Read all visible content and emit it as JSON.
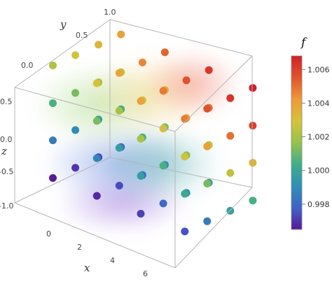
{
  "chart_data": {
    "type": "scatter",
    "mode": "3d",
    "title": "",
    "axes": {
      "x": {
        "label": "x",
        "range": [
          -0.5,
          6.8
        ],
        "ticks": [
          "0",
          "2",
          "4",
          "6"
        ]
      },
      "y": {
        "label": "y",
        "range": [
          -0.4,
          1.0
        ],
        "ticks": [
          "0.0",
          "0.5",
          "1.0"
        ]
      },
      "z": {
        "label": "z",
        "range": [
          -1.3,
          0.75
        ],
        "ticks": [
          "0.5",
          "0.0",
          "-0.5",
          "-1.0"
        ]
      }
    },
    "colorbar": {
      "label": "f",
      "range": [
        0.9965,
        1.0068
      ],
      "ticks": [
        "1.006",
        "1.004",
        "1.002",
        "1.000",
        "0.998"
      ],
      "colormap": [
        "#5a189a",
        "#3f63c9",
        "#2f8fb6",
        "#3fae8a",
        "#96c24a",
        "#d6c23a",
        "#ee9a38",
        "#e2542c",
        "#d21f26"
      ]
    },
    "box": true,
    "grid": false,
    "points_note": "4 x 4 x 4 lattice of sample points, f increases with z and y",
    "points": [
      {
        "x": 0.0,
        "y": 0.0,
        "z": -1.0,
        "f": 0.9965
      },
      {
        "x": 2.0,
        "y": 0.0,
        "z": -1.0,
        "f": 0.9968
      },
      {
        "x": 4.0,
        "y": 0.0,
        "z": -1.0,
        "f": 0.9972
      },
      {
        "x": 6.0,
        "y": 0.0,
        "z": -1.0,
        "f": 0.9975
      },
      {
        "x": 0.0,
        "y": 0.33,
        "z": -1.0,
        "f": 0.997
      },
      {
        "x": 2.0,
        "y": 0.33,
        "z": -1.0,
        "f": 0.9974
      },
      {
        "x": 4.0,
        "y": 0.33,
        "z": -1.0,
        "f": 0.998
      },
      {
        "x": 6.0,
        "y": 0.33,
        "z": -1.0,
        "f": 0.9985
      },
      {
        "x": 0.0,
        "y": 0.67,
        "z": -1.0,
        "f": 0.9972
      },
      {
        "x": 2.0,
        "y": 0.67,
        "z": -1.0,
        "f": 0.998
      },
      {
        "x": 4.0,
        "y": 0.67,
        "z": -1.0,
        "f": 0.999
      },
      {
        "x": 6.0,
        "y": 0.67,
        "z": -1.0,
        "f": 0.9998
      },
      {
        "x": 0.0,
        "y": 1.0,
        "z": -1.0,
        "f": 0.9978
      },
      {
        "x": 2.0,
        "y": 1.0,
        "z": -1.0,
        "f": 0.9988
      },
      {
        "x": 4.0,
        "y": 1.0,
        "z": -1.0,
        "f": 0.9998
      },
      {
        "x": 6.0,
        "y": 1.0,
        "z": -1.0,
        "f": 1.0005
      },
      {
        "x": 0.0,
        "y": 0.0,
        "z": -0.33,
        "f": 0.9985
      },
      {
        "x": 2.0,
        "y": 0.0,
        "z": -0.33,
        "f": 0.9988
      },
      {
        "x": 4.0,
        "y": 0.0,
        "z": -0.33,
        "f": 0.9996
      },
      {
        "x": 6.0,
        "y": 0.0,
        "z": -0.33,
        "f": 1.0002
      },
      {
        "x": 0.0,
        "y": 0.33,
        "z": -0.33,
        "f": 0.999
      },
      {
        "x": 2.0,
        "y": 0.33,
        "z": -0.33,
        "f": 0.9996
      },
      {
        "x": 4.0,
        "y": 0.33,
        "z": -0.33,
        "f": 1.0005
      },
      {
        "x": 6.0,
        "y": 0.33,
        "z": -0.33,
        "f": 1.0012
      },
      {
        "x": 0.0,
        "y": 0.67,
        "z": -0.33,
        "f": 0.9996
      },
      {
        "x": 2.0,
        "y": 0.67,
        "z": -0.33,
        "f": 1.0005
      },
      {
        "x": 4.0,
        "y": 0.67,
        "z": -0.33,
        "f": 1.0015
      },
      {
        "x": 6.0,
        "y": 0.67,
        "z": -0.33,
        "f": 1.0025
      },
      {
        "x": 0.0,
        "y": 1.0,
        "z": -0.33,
        "f": 1.0002
      },
      {
        "x": 2.0,
        "y": 1.0,
        "z": -0.33,
        "f": 1.0012
      },
      {
        "x": 4.0,
        "y": 1.0,
        "z": -0.33,
        "f": 1.0025
      },
      {
        "x": 6.0,
        "y": 1.0,
        "z": -0.33,
        "f": 1.0035
      },
      {
        "x": 0.0,
        "y": 0.0,
        "z": 0.33,
        "f": 1.0005
      },
      {
        "x": 2.0,
        "y": 0.0,
        "z": 0.33,
        "f": 1.0012
      },
      {
        "x": 4.0,
        "y": 0.0,
        "z": 0.33,
        "f": 1.002
      },
      {
        "x": 6.0,
        "y": 0.0,
        "z": 0.33,
        "f": 1.0028
      },
      {
        "x": 0.0,
        "y": 0.33,
        "z": 0.33,
        "f": 1.0012
      },
      {
        "x": 2.0,
        "y": 0.33,
        "z": 0.33,
        "f": 1.002
      },
      {
        "x": 4.0,
        "y": 0.33,
        "z": 0.33,
        "f": 1.003
      },
      {
        "x": 6.0,
        "y": 0.33,
        "z": 0.33,
        "f": 1.004
      },
      {
        "x": 0.0,
        "y": 0.67,
        "z": 0.33,
        "f": 1.0018
      },
      {
        "x": 2.0,
        "y": 0.67,
        "z": 0.33,
        "f": 1.0028
      },
      {
        "x": 4.0,
        "y": 0.67,
        "z": 0.33,
        "f": 1.004
      },
      {
        "x": 6.0,
        "y": 0.67,
        "z": 0.33,
        "f": 1.005
      },
      {
        "x": 0.0,
        "y": 1.0,
        "z": 0.33,
        "f": 1.0025
      },
      {
        "x": 2.0,
        "y": 1.0,
        "z": 0.33,
        "f": 1.0036
      },
      {
        "x": 4.0,
        "y": 1.0,
        "z": 0.33,
        "f": 1.005
      },
      {
        "x": 6.0,
        "y": 1.0,
        "z": 0.33,
        "f": 1.006
      },
      {
        "x": 0.0,
        "y": 0.0,
        "z": 1.0,
        "f": 1.0022
      },
      {
        "x": 2.0,
        "y": 0.0,
        "z": 1.0,
        "f": 1.003
      },
      {
        "x": 4.0,
        "y": 0.0,
        "z": 1.0,
        "f": 1.004
      },
      {
        "x": 6.0,
        "y": 0.0,
        "z": 1.0,
        "f": 1.0048
      },
      {
        "x": 0.0,
        "y": 0.33,
        "z": 1.0,
        "f": 1.0028
      },
      {
        "x": 2.0,
        "y": 0.33,
        "z": 1.0,
        "f": 1.0038
      },
      {
        "x": 4.0,
        "y": 0.33,
        "z": 1.0,
        "f": 1.0048
      },
      {
        "x": 6.0,
        "y": 0.33,
        "z": 1.0,
        "f": 1.0056
      },
      {
        "x": 0.0,
        "y": 0.67,
        "z": 1.0,
        "f": 1.0034
      },
      {
        "x": 2.0,
        "y": 0.67,
        "z": 1.0,
        "f": 1.0046
      },
      {
        "x": 4.0,
        "y": 0.67,
        "z": 1.0,
        "f": 1.0056
      },
      {
        "x": 6.0,
        "y": 0.67,
        "z": 1.0,
        "f": 1.0063
      },
      {
        "x": 0.0,
        "y": 1.0,
        "z": 1.0,
        "f": 1.004
      },
      {
        "x": 2.0,
        "y": 1.0,
        "z": 1.0,
        "f": 1.0052
      },
      {
        "x": 4.0,
        "y": 1.0,
        "z": 1.0,
        "f": 1.0062
      },
      {
        "x": 6.0,
        "y": 1.0,
        "z": 1.0,
        "f": 1.0068
      }
    ]
  }
}
